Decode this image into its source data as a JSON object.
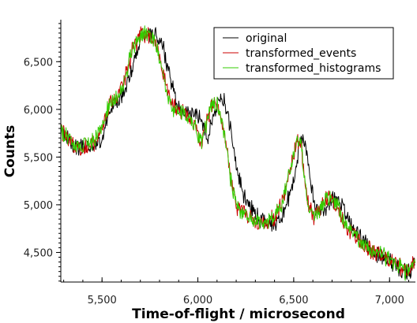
{
  "chart_data": {
    "type": "line",
    "title": "",
    "xlabel": "Time-of-flight / microsecond",
    "ylabel": "Counts",
    "xlim": [
      5285,
      7135
    ],
    "ylim": [
      4190,
      6940
    ],
    "xticks": [
      5500,
      6000,
      6500,
      7000
    ],
    "xtick_labels": [
      "5,500",
      "6,000",
      "6,500",
      "7,000"
    ],
    "yticks": [
      4500,
      5000,
      5500,
      6000,
      6500
    ],
    "ytick_labels": [
      "4,500",
      "5,000",
      "5,500",
      "6,000",
      "6,500"
    ],
    "legend_position": "top-right",
    "grid": false,
    "series": [
      {
        "name": "original",
        "color": "#000000",
        "x": [
          5285,
          5320,
          5370,
          5420,
          5460,
          5500,
          5540,
          5580,
          5620,
          5660,
          5700,
          5740,
          5780,
          5820,
          5860,
          5900,
          5940,
          5980,
          6020,
          6050,
          6080,
          6110,
          6140,
          6170,
          6200,
          6240,
          6280,
          6320,
          6360,
          6400,
          6440,
          6470,
          6500,
          6520,
          6540,
          6560,
          6580,
          6610,
          6640,
          6670,
          6700,
          6730,
          6760,
          6800,
          6840,
          6880,
          6920,
          6960,
          7000,
          7040,
          7080,
          7110,
          7135
        ],
        "values": [
          5780,
          5700,
          5600,
          5600,
          5620,
          5680,
          6000,
          6080,
          6200,
          6450,
          6740,
          6800,
          6780,
          6650,
          6300,
          6000,
          5980,
          5950,
          5900,
          5700,
          5950,
          6100,
          6070,
          5800,
          5400,
          5100,
          4950,
          4850,
          4820,
          4800,
          4880,
          5050,
          5280,
          5480,
          5700,
          5650,
          5350,
          5000,
          4900,
          4960,
          5070,
          5050,
          4960,
          4780,
          4680,
          4600,
          4500,
          4470,
          4420,
          4350,
          4290,
          4310,
          4400
        ]
      },
      {
        "name": "transformed_events",
        "color": "#cc0000",
        "x": [
          5285,
          5320,
          5370,
          5420,
          5460,
          5500,
          5540,
          5580,
          5620,
          5660,
          5700,
          5740,
          5780,
          5820,
          5860,
          5900,
          5940,
          5980,
          6020,
          6050,
          6080,
          6110,
          6140,
          6170,
          6200,
          6240,
          6280,
          6320,
          6360,
          6400,
          6440,
          6470,
          6500,
          6520,
          6540,
          6560,
          6580,
          6610,
          6640,
          6670,
          6700,
          6730,
          6760,
          6800,
          6840,
          6880,
          6920,
          6960,
          7000,
          7040,
          7080,
          7110,
          7135
        ],
        "values": [
          5780,
          5690,
          5600,
          5610,
          5650,
          5800,
          6060,
          6120,
          6320,
          6640,
          6790,
          6780,
          6700,
          6380,
          6050,
          5980,
          5950,
          5850,
          5650,
          5900,
          6080,
          6030,
          5720,
          5300,
          5000,
          4920,
          4850,
          4810,
          4820,
          4860,
          5020,
          5250,
          5520,
          5690,
          5620,
          5220,
          4950,
          4880,
          4960,
          5070,
          5060,
          4980,
          4820,
          4720,
          4640,
          4560,
          4500,
          4480,
          4430,
          4370,
          4300,
          4320,
          4420
        ]
      },
      {
        "name": "transformed_histograms",
        "color": "#33cc00",
        "x": [
          5285,
          5320,
          5370,
          5420,
          5460,
          5500,
          5540,
          5580,
          5620,
          5660,
          5700,
          5740,
          5780,
          5820,
          5860,
          5900,
          5940,
          5980,
          6020,
          6050,
          6080,
          6110,
          6140,
          6170,
          6200,
          6240,
          6280,
          6320,
          6360,
          6400,
          6440,
          6470,
          6500,
          6520,
          6540,
          6560,
          6580,
          6610,
          6640,
          6670,
          6700,
          6730,
          6760,
          6800,
          6840,
          6880,
          6920,
          6960,
          7000,
          7040,
          7080,
          7110,
          7135
        ],
        "values": [
          5770,
          5690,
          5600,
          5610,
          5660,
          5820,
          6060,
          6120,
          6340,
          6650,
          6780,
          6770,
          6690,
          6360,
          6040,
          5970,
          5940,
          5840,
          5640,
          5880,
          6070,
          6020,
          5700,
          5290,
          4990,
          4920,
          4850,
          4810,
          4820,
          4870,
          5030,
          5260,
          5530,
          5680,
          5600,
          5210,
          4950,
          4880,
          4960,
          5060,
          5060,
          4980,
          4820,
          4720,
          4640,
          4560,
          4500,
          4480,
          4430,
          4370,
          4300,
          4320,
          4420
        ]
      }
    ]
  }
}
